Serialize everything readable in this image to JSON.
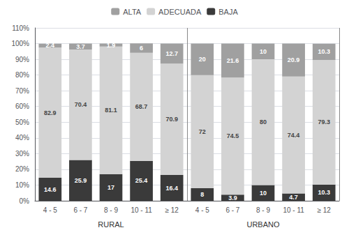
{
  "chart_data": {
    "type": "bar",
    "stacked": true,
    "categories": [
      "4 - 5",
      "6 - 7",
      "8 - 9",
      "10 - 11",
      "≥ 12",
      "4 - 5",
      "6 - 7",
      "8 - 9",
      "10 - 11",
      "≥ 12"
    ],
    "annotations": [
      "RURAL",
      "URBANO"
    ],
    "series": [
      {
        "name": "BAJA",
        "color": "#3a3a3a",
        "values": [
          14.6,
          25.9,
          17.0,
          25.4,
          16.4,
          8.0,
          3.9,
          10.0,
          4.7,
          10.3
        ]
      },
      {
        "name": "ADECUADA",
        "color": "#d3d3d3",
        "values": [
          82.9,
          70.4,
          81.1,
          68.7,
          70.9,
          72.0,
          74.5,
          80.0,
          74.4,
          79.3
        ]
      },
      {
        "name": "ALTA",
        "color": "#a0a0a0",
        "values": [
          2.4,
          3.7,
          1.9,
          6.0,
          12.7,
          20.0,
          21.6,
          10.0,
          20.9,
          10.3
        ]
      }
    ],
    "ylim": [
      0,
      110
    ],
    "yticks": [
      {
        "value": 0,
        "label": "0%"
      },
      {
        "value": 10,
        "label": "10%"
      },
      {
        "value": 20,
        "label": "20%"
      },
      {
        "value": 30,
        "label": "30%"
      },
      {
        "value": 40,
        "label": "40%"
      },
      {
        "value": 50,
        "label": "50%"
      },
      {
        "value": 60,
        "label": "60%"
      },
      {
        "value": 70,
        "label": "70%"
      },
      {
        "value": 80,
        "label": "80%"
      },
      {
        "value": 90,
        "label": "90%"
      },
      {
        "value": 100,
        "label": "100%"
      },
      {
        "value": 110,
        "label": "110%"
      }
    ],
    "grid": true,
    "legend": "top",
    "data_labels": true
  }
}
